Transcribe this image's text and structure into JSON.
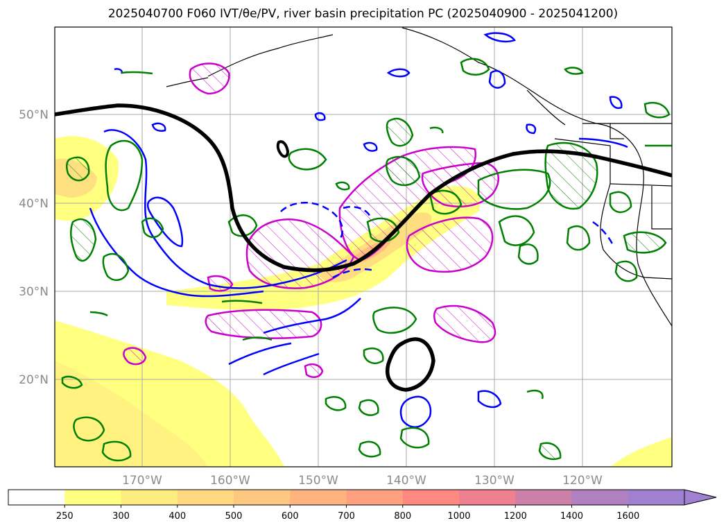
{
  "title": "2025040700 F060 IVT/θe/PV, river basin precipitation PC (2025040900 - 2025041200)",
  "map": {
    "lat_labels": [
      "50°N",
      "40°N",
      "30°N",
      "20°N"
    ],
    "lon_labels": [
      "170°W",
      "160°W",
      "150°W",
      "140°W",
      "130°W",
      "120°W"
    ]
  },
  "colorbar": {
    "levels": [
      "250",
      "300",
      "400",
      "500",
      "600",
      "700",
      "800",
      "1000",
      "1200",
      "1400",
      "1600"
    ],
    "colors": [
      "#ffffff",
      "#ffff80",
      "#ffec80",
      "#ffd880",
      "#ffc880",
      "#ffb480",
      "#ffa080",
      "#ff8880",
      "#ee8090",
      "#cc80a8",
      "#b080c0",
      "#a080d0"
    ],
    "extend": "max"
  },
  "legend_colors": {
    "ivt_shading": "#ffe680",
    "jet_contour": "#000000",
    "theta_e": "#0000ff",
    "pv": "#cc00cc",
    "precip": "#008000"
  }
}
